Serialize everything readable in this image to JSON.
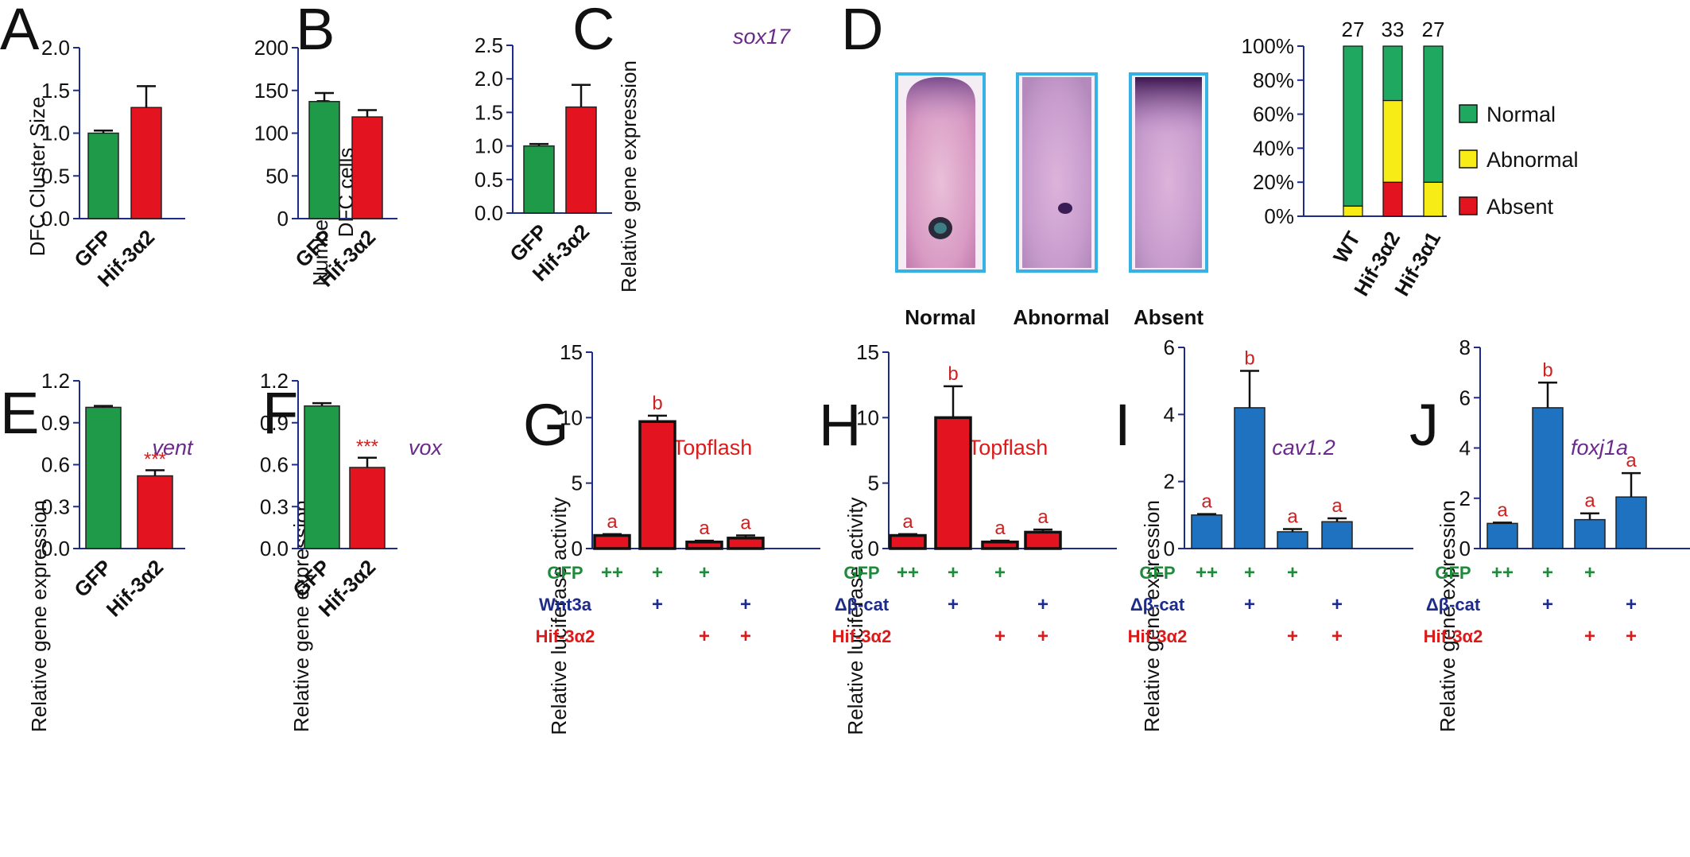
{
  "panels": {
    "A": {
      "label": "A",
      "ylabel": "DFC Cluster Size",
      "yticks": [
        "0.0",
        "0.5",
        "1.0",
        "1.5",
        "2.0"
      ],
      "categories": [
        "GFP",
        "Hif-3α2"
      ]
    },
    "B": {
      "label": "B",
      "ylabel1": "Number of Migrating",
      "ylabel2": "DFC cells",
      "yticks": [
        "0",
        "50",
        "100",
        "150",
        "200"
      ],
      "categories": [
        "GFP",
        "Hif-3α2"
      ]
    },
    "C": {
      "label": "C",
      "title": "sox17",
      "ylabel": "Relative gene expression",
      "yticks": [
        "0.0",
        "0.5",
        "1.0",
        "1.5",
        "2.0",
        "2.5"
      ],
      "categories": [
        "GFP",
        "Hif-3α2"
      ]
    },
    "D": {
      "label": "D",
      "images": [
        "Normal",
        "Abnormal",
        "Absent"
      ],
      "yticks": [
        "0%",
        "20%",
        "40%",
        "60%",
        "80%",
        "100%"
      ],
      "n": [
        "27",
        "33",
        "27"
      ],
      "categories": [
        "WT",
        "Hif-3α2",
        "Hif-3α1"
      ],
      "legend": [
        "Normal",
        "Abnormal",
        "Absent"
      ]
    },
    "E": {
      "label": "E",
      "title": "vent",
      "ylabel": "Relative gene expression",
      "yticks": [
        "0.0",
        "0.3",
        "0.6",
        "0.9",
        "1.2"
      ],
      "categories": [
        "GFP",
        "Hif-3α2"
      ],
      "sig": "***"
    },
    "F": {
      "label": "F",
      "title": "vox",
      "ylabel": "Relative gene expression",
      "yticks": [
        "0.0",
        "0.3",
        "0.6",
        "0.9",
        "1.2"
      ],
      "categories": [
        "GFP",
        "Hif-3α2"
      ],
      "sig": "***"
    },
    "G": {
      "label": "G",
      "title": "Topflash",
      "ylabel": "Relative luciferase activity",
      "yticks": [
        "0",
        "5",
        "10",
        "15"
      ],
      "letters": [
        "a",
        "b",
        "a",
        "a"
      ],
      "rows": [
        {
          "label": "GFP",
          "symbols": [
            "++",
            "+",
            "+",
            ""
          ]
        },
        {
          "label": "Wnt3a",
          "symbols": [
            "",
            "+",
            "",
            "+"
          ]
        },
        {
          "label": "Hif-3α2",
          "symbols": [
            "",
            "",
            "+",
            "+"
          ]
        }
      ]
    },
    "H": {
      "label": "H",
      "title": "Topflash",
      "ylabel": "Relative luciferase activity",
      "yticks": [
        "0",
        "5",
        "10",
        "15"
      ],
      "letters": [
        "a",
        "b",
        "a",
        "a"
      ],
      "rows": [
        {
          "label": "GFP",
          "symbols": [
            "++",
            "+",
            "+",
            ""
          ]
        },
        {
          "label": "Δβ-cat",
          "symbols": [
            "",
            "+",
            "",
            "+"
          ]
        },
        {
          "label": "Hif-3α2",
          "symbols": [
            "",
            "",
            "+",
            "+"
          ]
        }
      ]
    },
    "I": {
      "label": "I",
      "title": "cav1.2",
      "ylabel": "Relative gene expression",
      "yticks": [
        "0",
        "2",
        "4",
        "6"
      ],
      "letters": [
        "a",
        "b",
        "a",
        "a"
      ],
      "rows": [
        {
          "label": "GFP",
          "symbols": [
            "++",
            "+",
            "+",
            ""
          ]
        },
        {
          "label": "Δβ-cat",
          "symbols": [
            "",
            "+",
            "",
            "+"
          ]
        },
        {
          "label": "Hif-3α2",
          "symbols": [
            "",
            "",
            "+",
            "+"
          ]
        }
      ]
    },
    "J": {
      "label": "J",
      "title": "foxj1a",
      "ylabel": "Relative gene expression",
      "yticks": [
        "0",
        "2",
        "4",
        "6",
        "8"
      ],
      "letters": [
        "a",
        "b",
        "a",
        "a"
      ],
      "rows": [
        {
          "label": "GFP",
          "symbols": [
            "++",
            "+",
            "+",
            ""
          ]
        },
        {
          "label": "Δβ-cat",
          "symbols": [
            "",
            "+",
            "",
            "+"
          ]
        },
        {
          "label": "Hif-3α2",
          "symbols": [
            "",
            "",
            "+",
            "+"
          ]
        }
      ]
    }
  },
  "colors": {
    "green": "#1e9a48",
    "red": "#e3141f",
    "blue": "#1f72c0",
    "yellow": "#f7ec16",
    "legend_green": "#1fa860",
    "axis": "#1d2b8a",
    "row_green": "#1e8a3a",
    "row_blue": "#1d2b8a",
    "row_red": "#dd1a1a",
    "image_border": "#35b2e4"
  },
  "chart_data": [
    {
      "panel": "A",
      "type": "bar",
      "categories": [
        "GFP",
        "Hif-3α2"
      ],
      "values": [
        1.0,
        1.3
      ],
      "errors": [
        0.03,
        0.25
      ],
      "ylim": [
        0,
        2.0
      ],
      "ylabel": "DFC Cluster Size"
    },
    {
      "panel": "B",
      "type": "bar",
      "categories": [
        "GFP",
        "Hif-3α2"
      ],
      "values": [
        137,
        119
      ],
      "errors": [
        10,
        8
      ],
      "ylim": [
        0,
        200
      ],
      "ylabel": "Number of Migrating DFC cells"
    },
    {
      "panel": "C",
      "type": "bar",
      "title": "sox17",
      "categories": [
        "GFP",
        "Hif-3α2"
      ],
      "values": [
        1.0,
        1.58
      ],
      "errors": [
        0.03,
        0.33
      ],
      "ylim": [
        0,
        2.5
      ],
      "ylabel": "Relative gene expression"
    },
    {
      "panel": "D",
      "type": "bar",
      "stacked": true,
      "categories": [
        "WT",
        "Hif-3α2",
        "Hif-3α1"
      ],
      "n": [
        27,
        33,
        27
      ],
      "ylim": [
        0,
        100
      ],
      "series": [
        {
          "name": "Absent",
          "values": [
            0,
            20,
            0
          ]
        },
        {
          "name": "Abnormal",
          "values": [
            6,
            48,
            20
          ]
        },
        {
          "name": "Normal",
          "values": [
            94,
            32,
            80
          ]
        }
      ]
    },
    {
      "panel": "E",
      "type": "bar",
      "title": "vent",
      "categories": [
        "GFP",
        "Hif-3α2"
      ],
      "values": [
        1.01,
        0.52
      ],
      "errors": [
        0.01,
        0.04
      ],
      "ylim": [
        0,
        1.2
      ],
      "ylabel": "Relative gene expression"
    },
    {
      "panel": "F",
      "type": "bar",
      "title": "vox",
      "categories": [
        "GFP",
        "Hif-3α2"
      ],
      "values": [
        1.02,
        0.58
      ],
      "errors": [
        0.02,
        0.07
      ],
      "ylim": [
        0,
        1.2
      ],
      "ylabel": "Relative gene expression"
    },
    {
      "panel": "G",
      "type": "bar",
      "title": "Topflash",
      "values": [
        1.0,
        9.7,
        0.5,
        0.8
      ],
      "errors": [
        0.1,
        0.45,
        0.1,
        0.2
      ],
      "ylim": [
        0,
        15
      ],
      "ylabel": "Relative luciferase activity"
    },
    {
      "panel": "H",
      "type": "bar",
      "title": "Topflash",
      "values": [
        1.0,
        10.0,
        0.5,
        1.25
      ],
      "errors": [
        0.1,
        2.4,
        0.1,
        0.2
      ],
      "ylim": [
        0,
        15
      ],
      "ylabel": "Relative luciferase activity"
    },
    {
      "panel": "I",
      "type": "bar",
      "title": "cav1.2",
      "values": [
        1.0,
        4.2,
        0.5,
        0.8
      ],
      "errors": [
        0.03,
        1.1,
        0.08,
        0.1
      ],
      "ylim": [
        0,
        6
      ],
      "ylabel": "Relative gene expression"
    },
    {
      "panel": "J",
      "type": "bar",
      "title": "foxj1a",
      "values": [
        1.0,
        5.6,
        1.15,
        2.05
      ],
      "errors": [
        0.03,
        1.0,
        0.25,
        0.95
      ],
      "ylim": [
        0,
        8
      ],
      "ylabel": "Relative gene expression"
    }
  ]
}
